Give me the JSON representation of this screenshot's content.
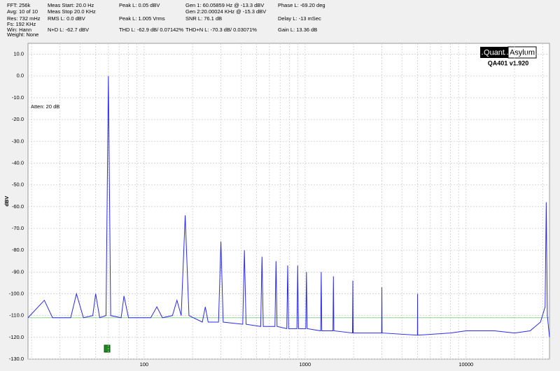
{
  "header": {
    "columns": [
      [
        "FFT: 256k",
        "Avg: 10 of 10",
        "Res: 732 mHz",
        "Fs: 192 KHz",
        "Win: Hann",
        "Weight: None"
      ],
      [
        "Meas Start: 20.0 Hz",
        "Meas Stop 20.0 KHz",
        "RMS L: 0.0 dBV",
        "N+D L: -62.7 dBV"
      ],
      [
        "Peak L: 0.05 dBV",
        "Peak L: 1.005 Vrms",
        "THD L: -62.9 dB/ 0.07142%"
      ],
      [
        "Gen 1: 60.05859 Hz @ -13.3  dBV",
        "Gen 2:20.00024 KHz @ -15.3  dBV",
        "SNR L: 76.1 dB",
        "THD+N L: -70.3 dB/ 0.03071%"
      ],
      [
        "Phase L: -69.20 deg",
        "Delay L: -13 mSec",
        "Gain L: 13.36 dB"
      ]
    ],
    "logo": {
      "left": "Quant",
      "right": "Asylum",
      "version": "QA401 v1.920"
    }
  },
  "chart_data": {
    "type": "line",
    "ylabel": "dBV",
    "annotation": "Atten: 20 dB",
    "log_x": true,
    "grid": true,
    "xlim": [
      19,
      33000
    ],
    "xticks": [
      100,
      1000,
      10000
    ],
    "ylim": [
      -130,
      15
    ],
    "yticks": [
      {
        "value": 10,
        "label": "10.0"
      },
      {
        "value": 0,
        "label": "0.0"
      },
      {
        "value": -10,
        "label": "-10.0"
      },
      {
        "value": -20,
        "label": "-20.0"
      },
      {
        "value": -30,
        "label": "-30.0"
      },
      {
        "value": -40,
        "label": "-40.0"
      },
      {
        "value": -50,
        "label": "-50.0"
      },
      {
        "value": -60,
        "label": "-60.0"
      },
      {
        "value": -70,
        "label": "-70.0"
      },
      {
        "value": -80,
        "label": "-80.0"
      },
      {
        "value": -90,
        "label": "-90.0"
      },
      {
        "value": -100,
        "label": "-100.0"
      },
      {
        "value": -110,
        "label": "-110.0"
      },
      {
        "value": -120,
        "label": "-120.0"
      },
      {
        "value": -130,
        "label": "-130.0"
      }
    ],
    "reference_level": -111,
    "reference_color": "#8fcf8f",
    "x": [
      19,
      24,
      27,
      35,
      38,
      42,
      48,
      50,
      53,
      58,
      60,
      62,
      72,
      75,
      80,
      110,
      120,
      130,
      150,
      160,
      170,
      180,
      190,
      230,
      240,
      250,
      290,
      300,
      310,
      410,
      420,
      430,
      530,
      540,
      550,
      650,
      660,
      670,
      770,
      780,
      790,
      890,
      900,
      910,
      1010,
      1020,
      1030,
      1250,
      1260,
      1270,
      1490,
      1500,
      1510,
      1970,
      1980,
      1990,
      2990,
      3000,
      3010,
      4990,
      5000,
      5010,
      8000,
      10000,
      15000,
      20000,
      25000,
      29000,
      31000,
      31500,
      32000,
      33000
    ],
    "series": [
      {
        "name": "L",
        "color": "#2a2aee",
        "values": [
          -111,
          -103,
          -111,
          -111,
          -100,
          -111,
          -110,
          -100,
          -111,
          -110,
          0,
          -110,
          -111,
          -101,
          -111,
          -111,
          -106,
          -111,
          -110,
          -103,
          -110,
          -64,
          -110,
          -113,
          -106,
          -113,
          -113,
          -76,
          -113,
          -114,
          -80,
          -114,
          -115,
          -83,
          -115,
          -115,
          -85,
          -115,
          -116,
          -87,
          -116,
          -116,
          -87,
          -116,
          -116,
          -90,
          -116,
          -117,
          -90,
          -117,
          -117,
          -92,
          -117,
          -118,
          -94,
          -118,
          -118,
          -97,
          -118,
          -119,
          -100,
          -119,
          -118,
          -117,
          -117,
          -118,
          -117,
          -113,
          -106,
          -58,
          -110,
          -120
        ]
      }
    ]
  }
}
